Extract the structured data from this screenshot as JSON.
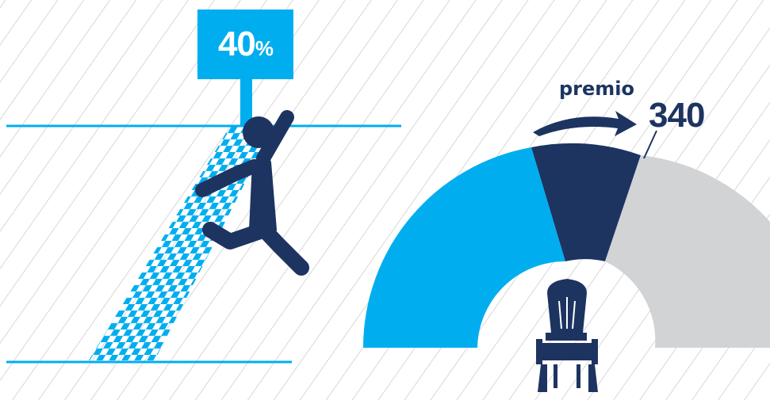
{
  "progress": {
    "value": "40",
    "unit": "%",
    "fraction": 0.4
  },
  "gauge": {
    "label": "premio",
    "value": "340",
    "segments": [
      {
        "name": "light-blue",
        "color": "#00aeef"
      },
      {
        "name": "navy",
        "color": "#1d3461"
      },
      {
        "name": "gray",
        "color": "#d1d3d4"
      }
    ]
  },
  "colors": {
    "accent": "#00aeef",
    "navy": "#1d3461",
    "gray": "#d1d3d4"
  },
  "icons": {
    "runner": "runner-icon",
    "chair": "throne-chair-icon"
  }
}
